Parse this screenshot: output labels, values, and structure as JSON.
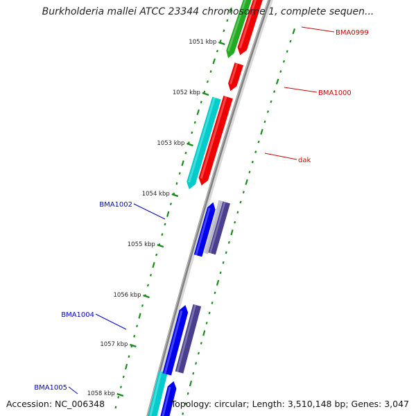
{
  "title": "Burkholderia mallei ATCC 23344 chromosome 1, complete sequen...",
  "footer": {
    "accession": "Accession: NC_006348",
    "summary": "Topology: circular; Length: 3,510,148 bp; Genes: 3,047"
  },
  "colors": {
    "background": "#ffffff",
    "backbone": "#808080",
    "ruler_tick": "#1a8a1a",
    "forward_label": "#cc0000",
    "reverse_label": "#0000cc",
    "red_gene": "#ee0000",
    "green_gene": "#22aa22",
    "cyan_gene": "#00cccc",
    "blue_gene": "#0000ee",
    "purple_gene": "#4a3f8f"
  },
  "ruler": {
    "labels": [
      "1051 kbp",
      "1052 kbp",
      "1053 kbp",
      "1054 kbp",
      "1055 kbp",
      "1056 kbp",
      "1057 kbp",
      "1058 kbp"
    ]
  },
  "features": [
    {
      "label": "BMA0999",
      "color": "#cc0000",
      "side": "forward"
    },
    {
      "label": "BMA1000",
      "color": "#cc0000",
      "side": "forward"
    },
    {
      "label": "dak",
      "color": "#cc0000",
      "side": "forward"
    },
    {
      "label": "BMA1002",
      "color": "#0000cc",
      "side": "reverse"
    },
    {
      "label": "BMA1004",
      "color": "#0000cc",
      "side": "reverse"
    },
    {
      "label": "BMA1005",
      "color": "#0000cc",
      "side": "reverse"
    }
  ]
}
